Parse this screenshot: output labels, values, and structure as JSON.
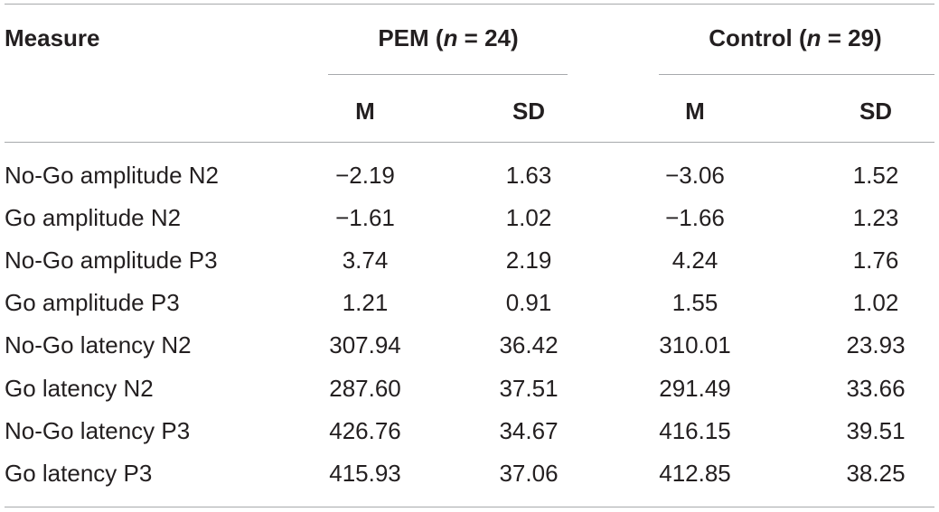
{
  "header": {
    "measure_label": "Measure",
    "groups": [
      {
        "name": "PEM",
        "n_prefix": "(",
        "n_symbol": "n",
        "n_value": " = 24)"
      },
      {
        "name": "Control",
        "n_prefix": "(",
        "n_symbol": "n",
        "n_value": " = 29)"
      }
    ],
    "subheaders": [
      "M",
      "SD",
      "M",
      "SD"
    ]
  },
  "rows": [
    {
      "measure": "No-Go amplitude N2",
      "pem_m": "−2.19",
      "pem_sd": "1.63",
      "ctrl_m": "−3.06",
      "ctrl_sd": "1.52"
    },
    {
      "measure": "Go amplitude N2",
      "pem_m": "−1.61",
      "pem_sd": "1.02",
      "ctrl_m": "−1.66",
      "ctrl_sd": "1.23"
    },
    {
      "measure": "No-Go amplitude P3",
      "pem_m": "3.74",
      "pem_sd": "2.19",
      "ctrl_m": "4.24",
      "ctrl_sd": "1.76"
    },
    {
      "measure": "Go amplitude P3",
      "pem_m": "1.21",
      "pem_sd": "0.91",
      "ctrl_m": "1.55",
      "ctrl_sd": "1.02"
    },
    {
      "measure": "No-Go latency N2",
      "pem_m": "307.94",
      "pem_sd": "36.42",
      "ctrl_m": "310.01",
      "ctrl_sd": "23.93"
    },
    {
      "measure": "Go latency N2",
      "pem_m": "287.60",
      "pem_sd": "37.51",
      "ctrl_m": "291.49",
      "ctrl_sd": "33.66"
    },
    {
      "measure": "No-Go latency P3",
      "pem_m": "426.76",
      "pem_sd": "34.67",
      "ctrl_m": "416.15",
      "ctrl_sd": "39.51"
    },
    {
      "measure": "Go latency P3",
      "pem_m": "415.93",
      "pem_sd": "37.06",
      "ctrl_m": "412.85",
      "ctrl_sd": "38.25"
    }
  ]
}
